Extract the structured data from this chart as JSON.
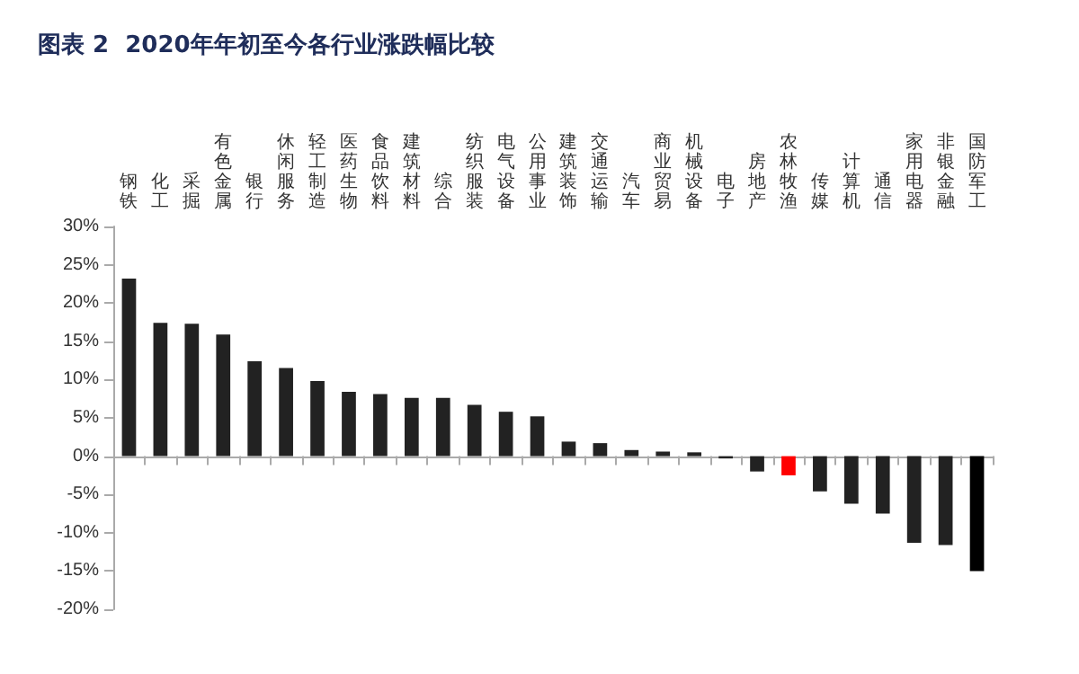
{
  "chart_data": {
    "type": "bar",
    "title": "图表 2  2020年年初至今各行业涨跌幅比较",
    "categories": [
      "钢铁",
      "化工",
      "采掘",
      "有色金属",
      "银行",
      "休闲服务",
      "轻工制造",
      "医药生物",
      "食品饮料",
      "建筑材料",
      "综合",
      "纺织服装",
      "电气设备",
      "公用事业",
      "建筑装饰",
      "交通运输",
      "汽车",
      "商业贸易",
      "机械设备",
      "电子",
      "房地产",
      "农林牧渔",
      "传媒",
      "计算机",
      "通信",
      "家用电器",
      "非银金融",
      "国防军工"
    ],
    "values": [
      23.2,
      17.4,
      17.3,
      15.9,
      12.4,
      11.5,
      9.8,
      8.4,
      8.1,
      7.6,
      7.6,
      6.7,
      5.8,
      5.2,
      1.9,
      1.7,
      0.8,
      0.6,
      0.5,
      -0.3,
      -2.0,
      -2.5,
      -4.6,
      -6.2,
      -7.5,
      -11.3,
      -11.6,
      -15.0
    ],
    "colors": [
      "#222222",
      "#222222",
      "#222222",
      "#222222",
      "#222222",
      "#222222",
      "#222222",
      "#222222",
      "#222222",
      "#222222",
      "#222222",
      "#222222",
      "#222222",
      "#222222",
      "#222222",
      "#222222",
      "#222222",
      "#222222",
      "#222222",
      "#222222",
      "#222222",
      "#ff0000",
      "#222222",
      "#222222",
      "#222222",
      "#222222",
      "#222222",
      "#000000"
    ],
    "ylim": [
      -20,
      30
    ],
    "yticks": [
      {
        "value": -20,
        "label": "-20%"
      },
      {
        "value": -15,
        "label": "-15%"
      },
      {
        "value": -10,
        "label": "-10%"
      },
      {
        "value": -5,
        "label": "-5%"
      },
      {
        "value": 0,
        "label": "0%"
      },
      {
        "value": 5,
        "label": "5%"
      },
      {
        "value": 10,
        "label": "10%"
      },
      {
        "value": 15,
        "label": "15%"
      },
      {
        "value": 20,
        "label": "20%"
      },
      {
        "value": 25,
        "label": "25%"
      },
      {
        "value": 30,
        "label": "30%"
      }
    ]
  }
}
